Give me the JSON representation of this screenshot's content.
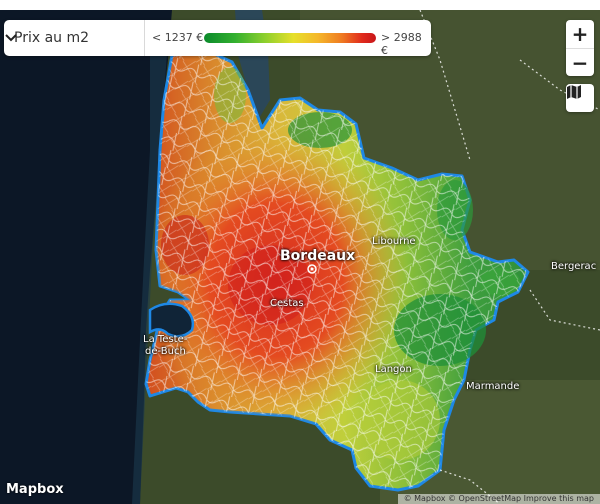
{
  "controls": {
    "metric_select": {
      "value": "Prix au m2"
    },
    "legend": {
      "min_label": "< 1237 €",
      "max_label": "> 2988 €"
    },
    "zoom_in_label": "+",
    "zoom_out_label": "−",
    "style_toggle_icon": "map-icon"
  },
  "places": {
    "bordeaux": "Bordeaux",
    "libourne": "Libourne",
    "cestas": "Cestas",
    "la_teste_line1": "La Teste-",
    "la_teste_line2": "de-Buch",
    "langon": "Langon",
    "bergerac": "Bergerac",
    "marmande": "Marmande"
  },
  "footer": {
    "logo": "Mapbox",
    "attribution": "© Mapbox © OpenStreetMap  Improve this map"
  },
  "colors": {
    "boundary": "#1e88e5",
    "cheap": "#1e9a34",
    "expensive": "#d42a1f"
  }
}
